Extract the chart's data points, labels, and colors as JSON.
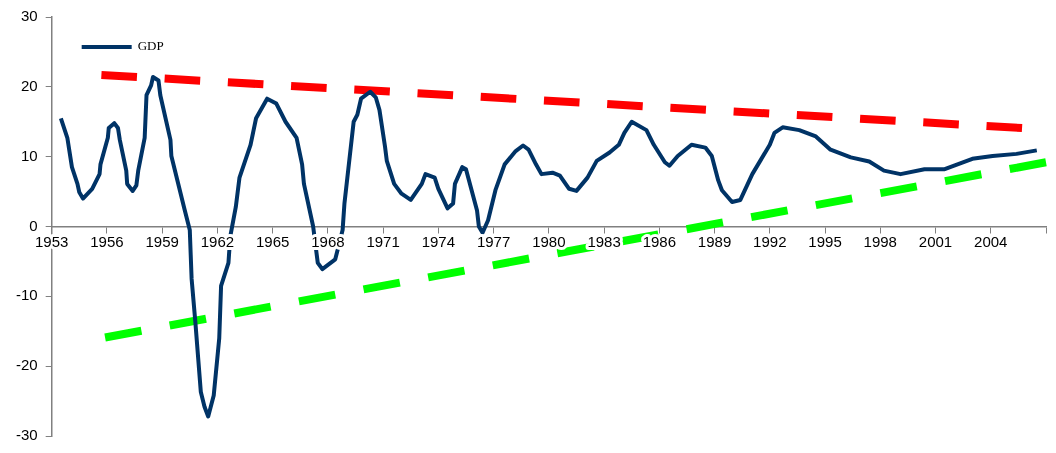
{
  "chart_data": {
    "type": "line",
    "xlim": [
      1953,
      2007
    ],
    "xticks": [
      1953,
      1956,
      1959,
      1962,
      1965,
      1968,
      1971,
      1974,
      1977,
      1980,
      1983,
      1986,
      1989,
      1992,
      1995,
      1998,
      2001,
      2004,
      {
        "value": 2007,
        "label": null
      }
    ],
    "ylim": [
      -30,
      30
    ],
    "yticks": [
      -30,
      -20,
      -10,
      0,
      10,
      20,
      30
    ],
    "legend": "top left",
    "marker": "none",
    "x": [
      1953.5,
      1953.85,
      1954.1,
      1954.4,
      1954.5,
      1954.7,
      1955.2,
      1955.6,
      1955.65,
      1956.05,
      1956.1,
      1956.4,
      1956.6,
      1956.7,
      1957.05,
      1957.1,
      1957.4,
      1957.6,
      1957.7,
      1958.05,
      1958.15,
      1958.4,
      1958.5,
      1958.8,
      1958.9,
      1959.45,
      1959.5,
      1960.2,
      1960.5,
      1960.6,
      1960.8,
      1961.1,
      1961.3,
      1961.5,
      1961.8,
      1962.1,
      1962.2,
      1962.6,
      1962.7,
      1963.0,
      1963.2,
      1963.8,
      1964.1,
      1964.7,
      1965.2,
      1965.7,
      1966.3,
      1966.6,
      1966.7,
      1967.2,
      1967.45,
      1967.7,
      1968.4,
      1968.8,
      1968.9,
      1969.4,
      1969.6,
      1969.8,
      1970.3,
      1970.6,
      1970.8,
      1971.1,
      1971.2,
      1971.6,
      1972.0,
      1972.5,
      1973.1,
      1973.3,
      1973.8,
      1974.0,
      1974.5,
      1974.8,
      1974.9,
      1975.3,
      1975.5,
      1976.1,
      1976.2,
      1976.4,
      1976.7,
      1977.1,
      1977.6,
      1978.2,
      1978.6,
      1978.9,
      1979.3,
      1979.6,
      1980.2,
      1980.6,
      1981.1,
      1981.5,
      1982.1,
      1982.6,
      1983.3,
      1983.8,
      1984.1,
      1984.5,
      1985.3,
      1985.7,
      1986.3,
      1986.55,
      1987.0,
      1987.75,
      1988.5,
      1988.85,
      1989.2,
      1989.4,
      1989.95,
      1990.4,
      1991.05,
      1992.0,
      1992.25,
      1992.7,
      1993.6,
      1994.5,
      1995.3,
      1996.4,
      1997.4,
      1998.2,
      1999.1,
      2000.4,
      2001.5,
      2003.0,
      2004.1,
      2005.4,
      2006.5
    ],
    "series": [
      {
        "name": "GDP",
        "color": "#003366",
        "values": [
          15.5,
          12.7,
          8.5,
          6.1,
          4.9,
          4.0,
          5.4,
          7.5,
          8.9,
          12.7,
          14.1,
          14.8,
          14.1,
          12.4,
          8.0,
          6.1,
          5.1,
          5.9,
          8.0,
          12.7,
          18.8,
          20.2,
          21.4,
          20.9,
          18.8,
          12.4,
          10.1,
          2.6,
          -0.5,
          -7.5,
          -13.6,
          -23.7,
          -25.8,
          -27.2,
          -24.2,
          -16.0,
          -8.5,
          -5.2,
          -1.4,
          2.8,
          7.0,
          11.7,
          15.5,
          18.3,
          17.6,
          15.0,
          12.7,
          8.9,
          6.1,
          0,
          -5.2,
          -6.1,
          -4.7,
          -0.5,
          3.3,
          15.0,
          16.0,
          18.3,
          19.3,
          18.5,
          16.7,
          11.5,
          9.4,
          6.1,
          4.7,
          3.8,
          6.1,
          7.5,
          7.0,
          5.4,
          2.6,
          3.3,
          6.1,
          8.5,
          8.2,
          2.3,
          0,
          -0.9,
          0.9,
          5.2,
          8.9,
          10.8,
          11.6,
          11.0,
          8.9,
          7.5,
          7.7,
          7.3,
          5.4,
          5.1,
          7.0,
          9.4,
          10.6,
          11.7,
          13.4,
          15.0,
          13.8,
          11.7,
          9.2,
          8.7,
          10.1,
          11.7,
          11.3,
          10.1,
          6.6,
          5.2,
          3.5,
          3.8,
          7.5,
          11.7,
          13.4,
          14.2,
          13.8,
          12.9,
          11.0,
          9.9,
          9.3,
          8.0,
          7.5,
          8.2,
          8.2,
          9.7,
          10.1,
          10.4,
          10.9
        ]
      },
      {
        "type": "line",
        "color": "#ff0000",
        "line_style": "dashed",
        "x": [
          1955.7,
          2005.7
        ],
        "values": [
          21.7,
          14.1
        ]
      },
      {
        "type": "line",
        "color": "#00ff00",
        "line_style": "dashed",
        "x": [
          1955.9,
          2007
        ],
        "values": [
          -15.9,
          9.2
        ]
      }
    ]
  }
}
